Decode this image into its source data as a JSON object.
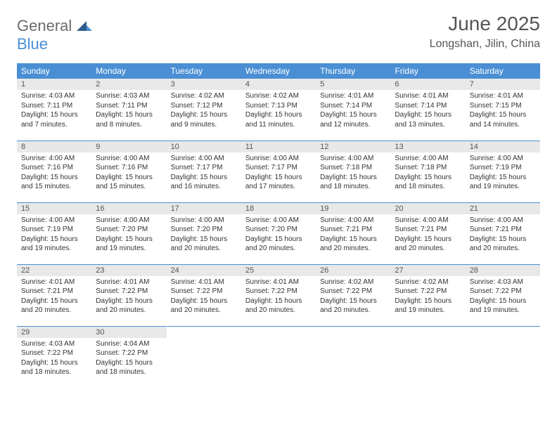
{
  "logo": {
    "text1": "General",
    "text2": "Blue"
  },
  "header": {
    "title": "June 2025",
    "location": "Longshan, Jilin, China"
  },
  "colors": {
    "header_bg": "#4a8fd4",
    "header_text": "#ffffff",
    "daynum_bg": "#e8e8e8",
    "text": "#333333",
    "logo_gray": "#6b6b6b",
    "logo_blue": "#4a8fd4",
    "border": "#4a8fd4"
  },
  "weekdays": [
    "Sunday",
    "Monday",
    "Tuesday",
    "Wednesday",
    "Thursday",
    "Friday",
    "Saturday"
  ],
  "calendar": {
    "type": "table",
    "columns": 7,
    "rows": 5,
    "cell_font_size": 10
  },
  "days": [
    {
      "n": "1",
      "sunrise": "Sunrise: 4:03 AM",
      "sunset": "Sunset: 7:11 PM",
      "daylight": "Daylight: 15 hours and 7 minutes."
    },
    {
      "n": "2",
      "sunrise": "Sunrise: 4:03 AM",
      "sunset": "Sunset: 7:11 PM",
      "daylight": "Daylight: 15 hours and 8 minutes."
    },
    {
      "n": "3",
      "sunrise": "Sunrise: 4:02 AM",
      "sunset": "Sunset: 7:12 PM",
      "daylight": "Daylight: 15 hours and 9 minutes."
    },
    {
      "n": "4",
      "sunrise": "Sunrise: 4:02 AM",
      "sunset": "Sunset: 7:13 PM",
      "daylight": "Daylight: 15 hours and 11 minutes."
    },
    {
      "n": "5",
      "sunrise": "Sunrise: 4:01 AM",
      "sunset": "Sunset: 7:14 PM",
      "daylight": "Daylight: 15 hours and 12 minutes."
    },
    {
      "n": "6",
      "sunrise": "Sunrise: 4:01 AM",
      "sunset": "Sunset: 7:14 PM",
      "daylight": "Daylight: 15 hours and 13 minutes."
    },
    {
      "n": "7",
      "sunrise": "Sunrise: 4:01 AM",
      "sunset": "Sunset: 7:15 PM",
      "daylight": "Daylight: 15 hours and 14 minutes."
    },
    {
      "n": "8",
      "sunrise": "Sunrise: 4:00 AM",
      "sunset": "Sunset: 7:16 PM",
      "daylight": "Daylight: 15 hours and 15 minutes."
    },
    {
      "n": "9",
      "sunrise": "Sunrise: 4:00 AM",
      "sunset": "Sunset: 7:16 PM",
      "daylight": "Daylight: 15 hours and 15 minutes."
    },
    {
      "n": "10",
      "sunrise": "Sunrise: 4:00 AM",
      "sunset": "Sunset: 7:17 PM",
      "daylight": "Daylight: 15 hours and 16 minutes."
    },
    {
      "n": "11",
      "sunrise": "Sunrise: 4:00 AM",
      "sunset": "Sunset: 7:17 PM",
      "daylight": "Daylight: 15 hours and 17 minutes."
    },
    {
      "n": "12",
      "sunrise": "Sunrise: 4:00 AM",
      "sunset": "Sunset: 7:18 PM",
      "daylight": "Daylight: 15 hours and 18 minutes."
    },
    {
      "n": "13",
      "sunrise": "Sunrise: 4:00 AM",
      "sunset": "Sunset: 7:18 PM",
      "daylight": "Daylight: 15 hours and 18 minutes."
    },
    {
      "n": "14",
      "sunrise": "Sunrise: 4:00 AM",
      "sunset": "Sunset: 7:19 PM",
      "daylight": "Daylight: 15 hours and 19 minutes."
    },
    {
      "n": "15",
      "sunrise": "Sunrise: 4:00 AM",
      "sunset": "Sunset: 7:19 PM",
      "daylight": "Daylight: 15 hours and 19 minutes."
    },
    {
      "n": "16",
      "sunrise": "Sunrise: 4:00 AM",
      "sunset": "Sunset: 7:20 PM",
      "daylight": "Daylight: 15 hours and 19 minutes."
    },
    {
      "n": "17",
      "sunrise": "Sunrise: 4:00 AM",
      "sunset": "Sunset: 7:20 PM",
      "daylight": "Daylight: 15 hours and 20 minutes."
    },
    {
      "n": "18",
      "sunrise": "Sunrise: 4:00 AM",
      "sunset": "Sunset: 7:20 PM",
      "daylight": "Daylight: 15 hours and 20 minutes."
    },
    {
      "n": "19",
      "sunrise": "Sunrise: 4:00 AM",
      "sunset": "Sunset: 7:21 PM",
      "daylight": "Daylight: 15 hours and 20 minutes."
    },
    {
      "n": "20",
      "sunrise": "Sunrise: 4:00 AM",
      "sunset": "Sunset: 7:21 PM",
      "daylight": "Daylight: 15 hours and 20 minutes."
    },
    {
      "n": "21",
      "sunrise": "Sunrise: 4:00 AM",
      "sunset": "Sunset: 7:21 PM",
      "daylight": "Daylight: 15 hours and 20 minutes."
    },
    {
      "n": "22",
      "sunrise": "Sunrise: 4:01 AM",
      "sunset": "Sunset: 7:21 PM",
      "daylight": "Daylight: 15 hours and 20 minutes."
    },
    {
      "n": "23",
      "sunrise": "Sunrise: 4:01 AM",
      "sunset": "Sunset: 7:22 PM",
      "daylight": "Daylight: 15 hours and 20 minutes."
    },
    {
      "n": "24",
      "sunrise": "Sunrise: 4:01 AM",
      "sunset": "Sunset: 7:22 PM",
      "daylight": "Daylight: 15 hours and 20 minutes."
    },
    {
      "n": "25",
      "sunrise": "Sunrise: 4:01 AM",
      "sunset": "Sunset: 7:22 PM",
      "daylight": "Daylight: 15 hours and 20 minutes."
    },
    {
      "n": "26",
      "sunrise": "Sunrise: 4:02 AM",
      "sunset": "Sunset: 7:22 PM",
      "daylight": "Daylight: 15 hours and 20 minutes."
    },
    {
      "n": "27",
      "sunrise": "Sunrise: 4:02 AM",
      "sunset": "Sunset: 7:22 PM",
      "daylight": "Daylight: 15 hours and 19 minutes."
    },
    {
      "n": "28",
      "sunrise": "Sunrise: 4:03 AM",
      "sunset": "Sunset: 7:22 PM",
      "daylight": "Daylight: 15 hours and 19 minutes."
    },
    {
      "n": "29",
      "sunrise": "Sunrise: 4:03 AM",
      "sunset": "Sunset: 7:22 PM",
      "daylight": "Daylight: 15 hours and 18 minutes."
    },
    {
      "n": "30",
      "sunrise": "Sunrise: 4:04 AM",
      "sunset": "Sunset: 7:22 PM",
      "daylight": "Daylight: 15 hours and 18 minutes."
    }
  ]
}
